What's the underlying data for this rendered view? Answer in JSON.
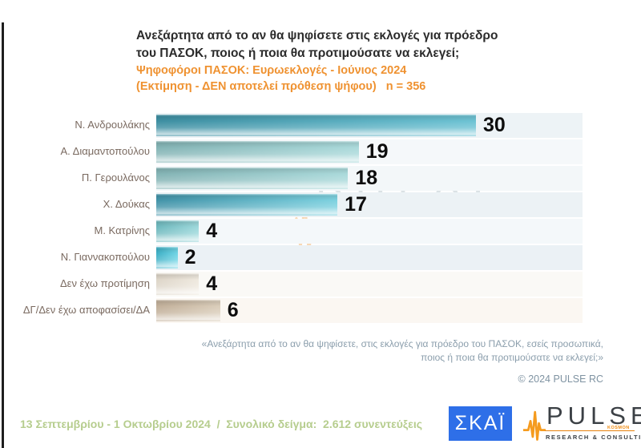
{
  "header": {
    "title_line1": "Ανεξάρτητα από το αν θα ψηφίσετε στις εκλογές για πρόεδρο",
    "title_line2": "του ΠΑΣΟΚ, ποιος ή ποια θα προτιμούσατε να εκλεγεί;",
    "subtitle_line1": "Ψηφοφόροι ΠΑΣΟΚ: Ευρωεκλογές - Ιούνιος 2024",
    "subtitle_line2": "(Εκτίμηση - ΔΕΝ αποτελεί πρόθεση ψήφου)   n = 356",
    "subtitle_color": "#ef9231"
  },
  "chart_data": {
    "type": "bar",
    "orientation": "horizontal",
    "title": "Ανεξάρτητα από το αν θα ψηφίσετε στις εκλογές για πρόεδρο του ΠΑΣΟΚ, ποιος ή ποια θα προτιμούσατε να εκλεγεί;",
    "categories": [
      "Ν. Ανδρουλάκης",
      "Α. Διαμαντοπούλου",
      "Π. Γερουλάνος",
      "Χ. Δούκας",
      "Μ. Κατρίνης",
      "Ν. Γιαννακοπούλου",
      "Δεν έχω προτίμηση",
      "ΔΓ/Δεν έχω αποφασίσει/ΔΑ"
    ],
    "values": [
      30,
      19,
      18,
      17,
      4,
      2,
      4,
      6
    ],
    "xlim": [
      0,
      40
    ],
    "grid": false,
    "legend": false,
    "value_labels": true,
    "bar_colors": [
      [
        "#3e8fa2",
        "#6ec3d4"
      ],
      [
        "#84b4b5",
        "#abdadb"
      ],
      [
        "#84b4b5",
        "#abdadb"
      ],
      [
        "#4394a9",
        "#7fd2e0"
      ],
      [
        "#6fb9be",
        "#9ed9dc"
      ],
      [
        "#3eafc5",
        "#72d6e6"
      ],
      [
        "#ddd5c8",
        "#efe9df"
      ],
      [
        "#c2b09a",
        "#dbcebb"
      ]
    ],
    "track_colors": [
      "#edf3f6",
      "#f5f8fa",
      "#f3f7f9",
      "#ecf2f5",
      "#f4f8fa",
      "#ebf1f5",
      "#faf9f6",
      "#fbf7f2"
    ]
  },
  "watermark": {
    "word": "PULSE",
    "kosmon": "KOSMON",
    "subtext": "RESEARCH & CONSULTING"
  },
  "quote": {
    "line1": "«Ανεξάρτητα από το αν θα ψηφίσετε, στις εκλογές για πρόεδρο του ΠΑΣΟΚ, εσείς προσωπικά,",
    "line2": "ποιος ή ποια θα προτιμούσατε να εκλεγεί;»"
  },
  "copyright": "© 2024 PULSE RC",
  "footer": {
    "note": "13 Σεπτεμβρίου - 1 Οκτωβρίου 2024  /  Συνολικό δείγμα:  2.612 συνεντεύξεις",
    "skai_label": "ΣΚΑΪ",
    "pulse_logo": {
      "word": "PULSE",
      "kosmon": "KOSMON",
      "subtext": "RESEARCH & CONSULTING"
    }
  }
}
